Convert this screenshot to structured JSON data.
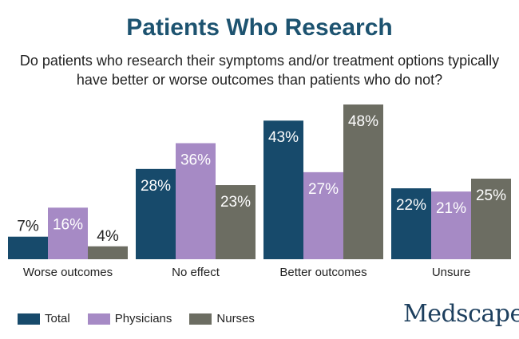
{
  "title": "Patients Who Research",
  "subtitle": "Do patients who research their symptoms and/or treatment options typically have better or worse outcomes than patients who do not?",
  "logo_text": "Medscape",
  "colors": {
    "Total": "#174a6b",
    "Physicians": "#a68ac5",
    "Nurses": "#6c6d62",
    "title": "#1d5370"
  },
  "chart_data": {
    "type": "bar",
    "title": "Patients Who Research",
    "subtitle": "Do patients who research their symptoms and/or treatment options typically have better or worse outcomes than patients who do not?",
    "categories": [
      "Worse outcomes",
      "No effect",
      "Better outcomes",
      "Unsure"
    ],
    "series": [
      {
        "name": "Total",
        "values": [
          7,
          28,
          43,
          22
        ],
        "labels": [
          "7%",
          "28%",
          "43%",
          "22%"
        ]
      },
      {
        "name": "Physicians",
        "values": [
          16,
          36,
          27,
          21
        ],
        "labels": [
          "16%",
          "36%",
          "27%",
          "21%"
        ]
      },
      {
        "name": "Nurses",
        "values": [
          4,
          23,
          48,
          25
        ],
        "labels": [
          "4%",
          "23%",
          "48%",
          "25%"
        ]
      }
    ],
    "ylim": [
      0,
      48
    ],
    "grid": false,
    "legend": "bottom-left"
  }
}
